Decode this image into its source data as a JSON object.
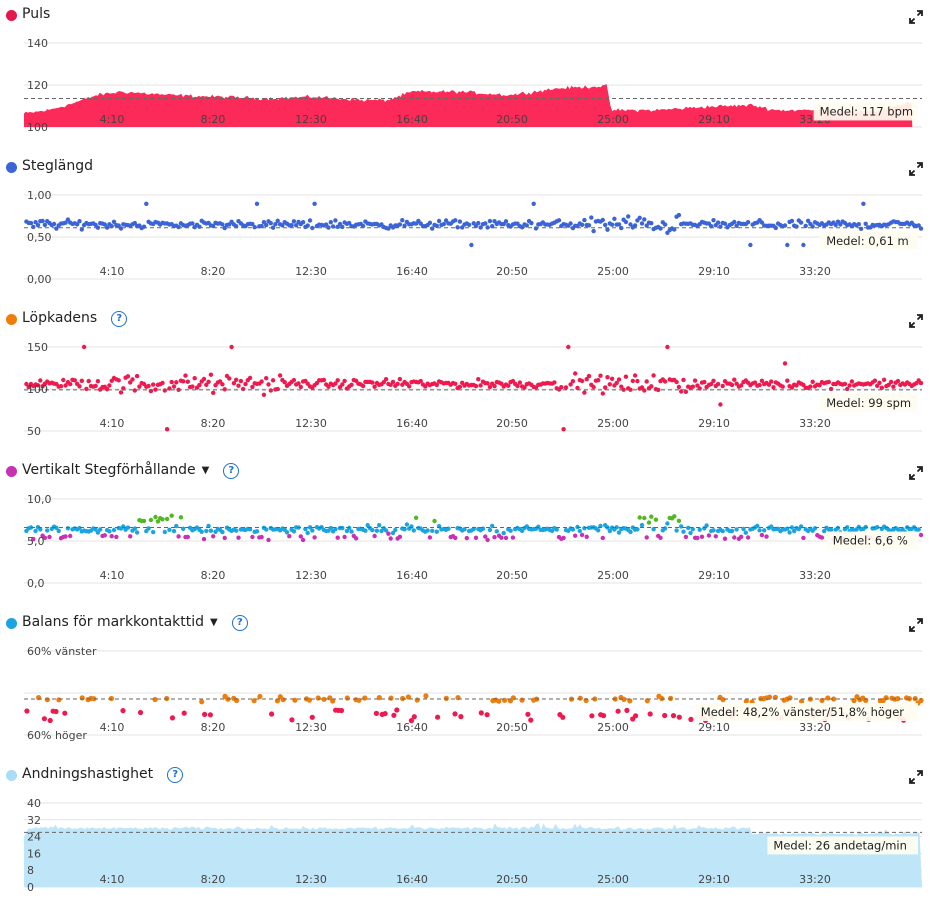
{
  "panels": [
    {
      "id": "puls",
      "title": "Puls",
      "dot_color": "#e8174b",
      "has_help": false,
      "has_dropdown": false,
      "y_ticks": [
        "140",
        "120",
        "100"
      ],
      "avg_label": "Medel: 117 bpm"
    },
    {
      "id": "steglangd",
      "title": "Steglängd",
      "dot_color": "#3b64d8",
      "has_help": false,
      "has_dropdown": false,
      "y_ticks": [
        "1,00",
        "0,50",
        "0,00"
      ],
      "avg_label": "Medel: 0,61 m"
    },
    {
      "id": "lopkadens",
      "title": "Löpkadens",
      "dot_color": "#f07d0a",
      "has_help": true,
      "has_dropdown": false,
      "y_ticks": [
        "150",
        "100",
        "50"
      ],
      "avg_label": "Medel: 99 spm"
    },
    {
      "id": "vertikalt",
      "title": "Vertikalt Stegförhållande",
      "dot_color": "#c930b4",
      "has_help": true,
      "has_dropdown": true,
      "y_ticks": [
        "10,0",
        "5,0",
        "0,0"
      ],
      "avg_label": "Medel: 6,6 %"
    },
    {
      "id": "balans",
      "title": "Balans för markkontakttid",
      "dot_color": "#1ba4e0",
      "has_help": true,
      "has_dropdown": true,
      "y_ticks": [
        "60% vänster",
        "",
        "60% höger"
      ],
      "avg_label": "Medel: 48,2% vänster/51,8% höger"
    },
    {
      "id": "andning",
      "title": "Andningshastighet",
      "dot_color": "#a9dcf5",
      "has_help": true,
      "has_dropdown": false,
      "y_ticks": [
        "40",
        "32",
        "24",
        "16",
        "8",
        "0"
      ],
      "avg_label": "Medel: 26 andetag/min"
    }
  ],
  "x_ticks": [
    "4:10",
    "8:20",
    "12:30",
    "16:40",
    "20:50",
    "25:00",
    "29:10",
    "33:20"
  ],
  "colors": {
    "puls": "#fb2a58",
    "steglangd": "#3b64d8",
    "lopkadens": "#f0194e",
    "vert_magenta": "#c930b4",
    "vert_blue": "#1ba4e0",
    "vert_green": "#50b820",
    "vert_orange": "#f07d0a",
    "balans_red": "#f0194e",
    "balans_orange": "#f07d0a",
    "balans_green": "#50b820",
    "andning": "#bfe5f8"
  },
  "chart_data": [
    {
      "type": "area",
      "series": [
        {
          "name": "Puls"
        }
      ],
      "x_range_min": [
        0,
        37
      ],
      "y_ticks_shown": [
        100,
        120,
        140
      ],
      "ylim": [
        100,
        150
      ],
      "average": 117,
      "profile": [
        {
          "t": 0,
          "v": 108
        },
        {
          "t": 1,
          "v": 110
        },
        {
          "t": 2,
          "v": 114
        },
        {
          "t": 3,
          "v": 119
        },
        {
          "t": 4,
          "v": 121
        },
        {
          "t": 6,
          "v": 119
        },
        {
          "t": 8,
          "v": 118
        },
        {
          "t": 10,
          "v": 117
        },
        {
          "t": 12,
          "v": 118
        },
        {
          "t": 14,
          "v": 116
        },
        {
          "t": 15,
          "v": 116
        },
        {
          "t": 16,
          "v": 121
        },
        {
          "t": 18,
          "v": 121
        },
        {
          "t": 20,
          "v": 119
        },
        {
          "t": 22,
          "v": 123
        },
        {
          "t": 24,
          "v": 124.5
        },
        {
          "t": 24.2,
          "v": 110
        },
        {
          "t": 26,
          "v": 110
        },
        {
          "t": 28,
          "v": 112
        },
        {
          "t": 30,
          "v": 113
        },
        {
          "t": 31,
          "v": 110
        },
        {
          "t": 33,
          "v": 110
        },
        {
          "t": 35,
          "v": 109
        },
        {
          "t": 36.6,
          "v": 115
        }
      ]
    },
    {
      "type": "scatter",
      "series": [
        {
          "name": "Steglängd"
        }
      ],
      "x_range_min": [
        0,
        37
      ],
      "ylim": [
        0,
        1.0
      ],
      "average": 0.61,
      "baseline": 0.65
    },
    {
      "type": "scatter",
      "series": [
        {
          "name": "Löpkadens"
        }
      ],
      "x_range_min": [
        0,
        37
      ],
      "ylim": [
        50,
        150
      ],
      "average": 99,
      "baseline": 106
    },
    {
      "type": "scatter",
      "series": [
        {
          "name": "Vertikalt Stegförhållande"
        }
      ],
      "x_range_min": [
        0,
        37
      ],
      "ylim": [
        0,
        10
      ],
      "average": 6.6,
      "baseline": 6.4
    },
    {
      "type": "scatter",
      "series": [
        {
          "name": "Balans för markkontakttid"
        }
      ],
      "x_range_min": [
        0,
        37
      ],
      "ylim": [
        -60,
        60
      ],
      "average": 48.2
    },
    {
      "type": "area",
      "series": [
        {
          "name": "Andningshastighet"
        }
      ],
      "x_range_min": [
        0,
        37
      ],
      "ylim": [
        0,
        40
      ],
      "y_ticks_shown": [
        0,
        8,
        16,
        24,
        32,
        40
      ],
      "average": 26,
      "baseline": 27
    }
  ]
}
